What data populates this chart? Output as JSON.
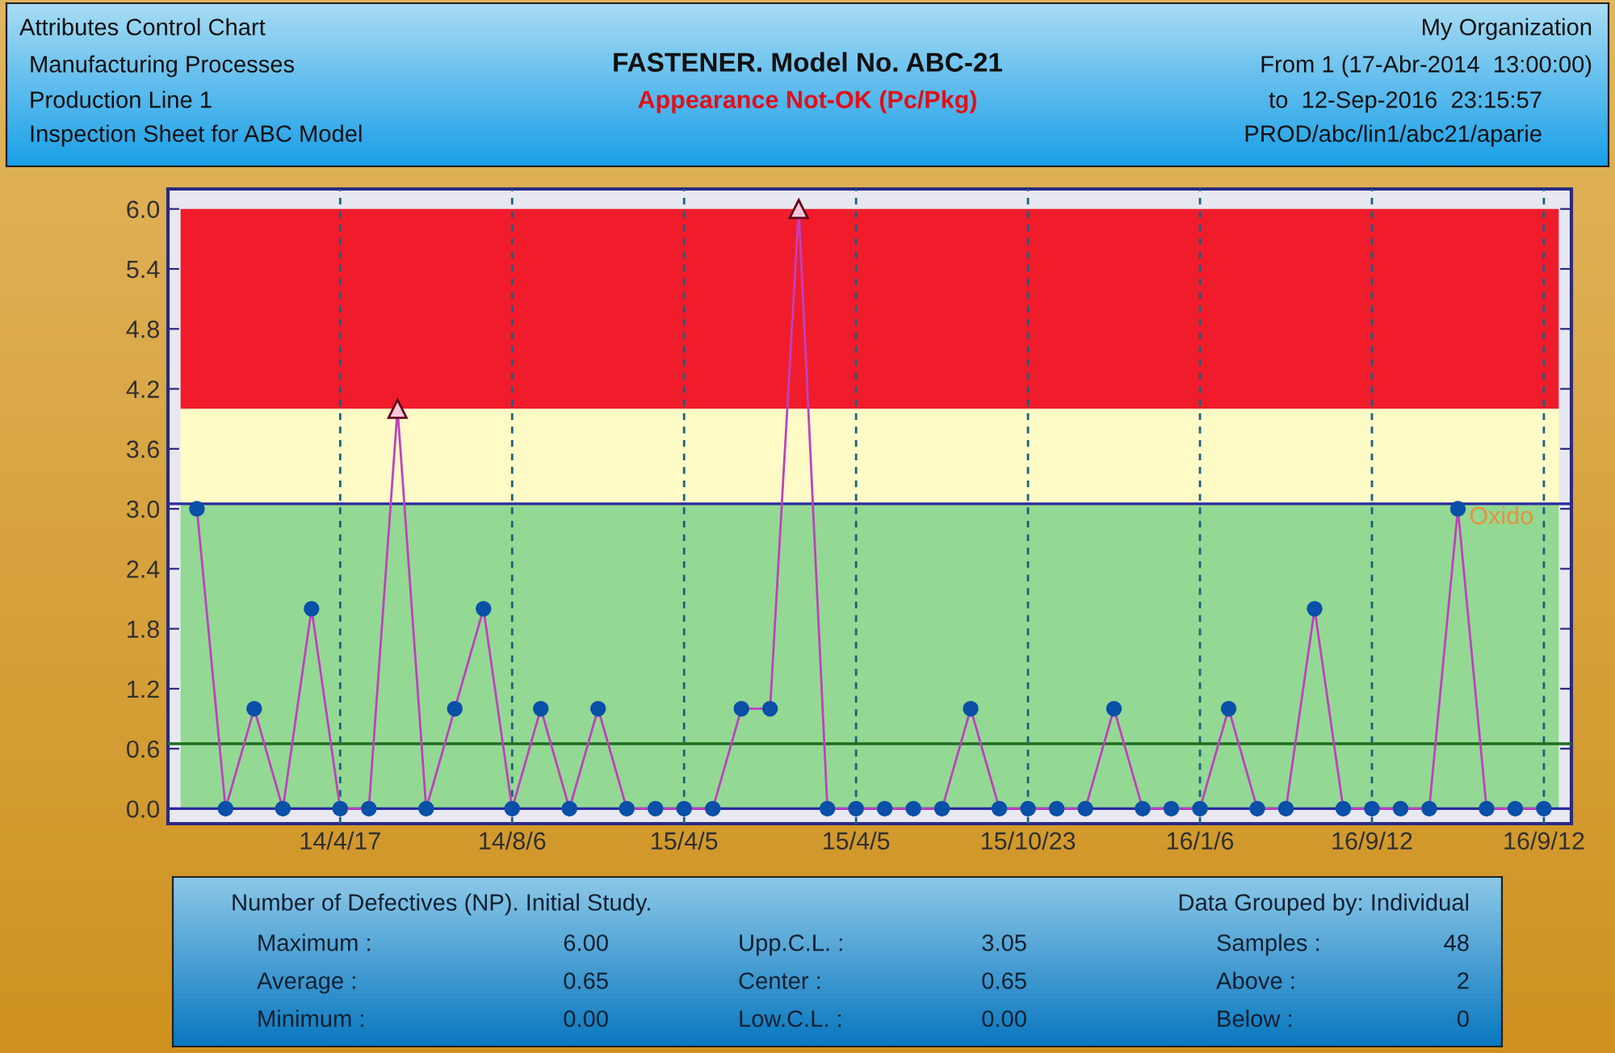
{
  "chart_data": {
    "type": "line",
    "title": "FASTENER. Model No. ABC-21",
    "subtitle": "Appearance Not-OK (Pc/Pkg)",
    "categories": [
      null,
      null,
      null,
      null,
      null,
      "14/4/17",
      null,
      null,
      null,
      null,
      null,
      "14/8/6",
      null,
      null,
      null,
      null,
      null,
      "15/4/5",
      null,
      null,
      null,
      null,
      null,
      "15/4/5",
      null,
      null,
      null,
      null,
      null,
      "15/10/23",
      null,
      null,
      null,
      null,
      null,
      "16/1/6",
      null,
      null,
      null,
      null,
      null,
      "16/9/12",
      null,
      null,
      null,
      null,
      null,
      "16/9/12"
    ],
    "series": [
      {
        "color": "#c040c0",
        "values": [
          3,
          0,
          1,
          0,
          2,
          0,
          0,
          4,
          0,
          1,
          2,
          0,
          1,
          0,
          1,
          0,
          0,
          0,
          0,
          1,
          1,
          6,
          0,
          0,
          0,
          0,
          0,
          1,
          0,
          0,
          0,
          0,
          1,
          0,
          0,
          0,
          1,
          0,
          0,
          2,
          0,
          0,
          0,
          0,
          3,
          0,
          0,
          0
        ],
        "value_labels": [
          null,
          null,
          null,
          null,
          null,
          null,
          null,
          null,
          null,
          null,
          null,
          null,
          null,
          null,
          null,
          null,
          null,
          null,
          null,
          null,
          null,
          null,
          null,
          null,
          null,
          null,
          null,
          null,
          null,
          null,
          null,
          null,
          null,
          null,
          null,
          null,
          null,
          null,
          null,
          null,
          null,
          null,
          null,
          null,
          "Oxido",
          null,
          null,
          null
        ]
      }
    ],
    "marker": "circle",
    "line_style": "solid",
    "grid": "x",
    "legend": false,
    "ylim": [
      -0.15,
      6.2
    ],
    "yticks": [
      {
        "value": 0,
        "label": "0.0"
      },
      0.6,
      1.2,
      1.8,
      2.4,
      {
        "value": 3,
        "label": "3.0"
      },
      3.6,
      4.2,
      4.8,
      5.4,
      {
        "value": 6,
        "label": "6.0"
      }
    ],
    "bands": [
      {
        "axis": "y",
        "from": 4.0,
        "to": 6.0,
        "color": "#f01c2c"
      },
      {
        "axis": "y",
        "from": 3.05,
        "to": 4.0,
        "color": "#fffbc6"
      },
      {
        "axis": "y",
        "from": 0.0,
        "to": 3.05,
        "color": "#93d993"
      }
    ],
    "ref_lines": [
      {
        "axis": "y",
        "value": 3.05,
        "color": "#2a2aa0"
      },
      {
        "axis": "y",
        "value": 0.65,
        "color": "#1f6f1f"
      },
      {
        "axis": "y",
        "value": 0.0,
        "color": "#2a2aa0"
      }
    ],
    "annotations": [
      "Attributes Control Chart",
      "Manufacturing Processes",
      "Production Line 1",
      "Inspection Sheet for ABC Model",
      "My Organization",
      "From 1 (17-Abr-2014  13:00:00)",
      "to  12-Sep-2016  23:15:57",
      "PROD/abc/lin1/abc21/aparie",
      "Number of Defectives (NP). Initial Study.",
      "Data Grouped by: Individual",
      "Maximum :",
      "6.00",
      "Upp.C.L. :",
      "3.05",
      "Samples :",
      "48",
      "Average :",
      "0.65",
      "Center :",
      "0.65",
      "Above :",
      "2",
      "Minimum :",
      "0.00",
      "Low.C.L. :",
      "0.00",
      "Below :",
      "0"
    ]
  }
}
